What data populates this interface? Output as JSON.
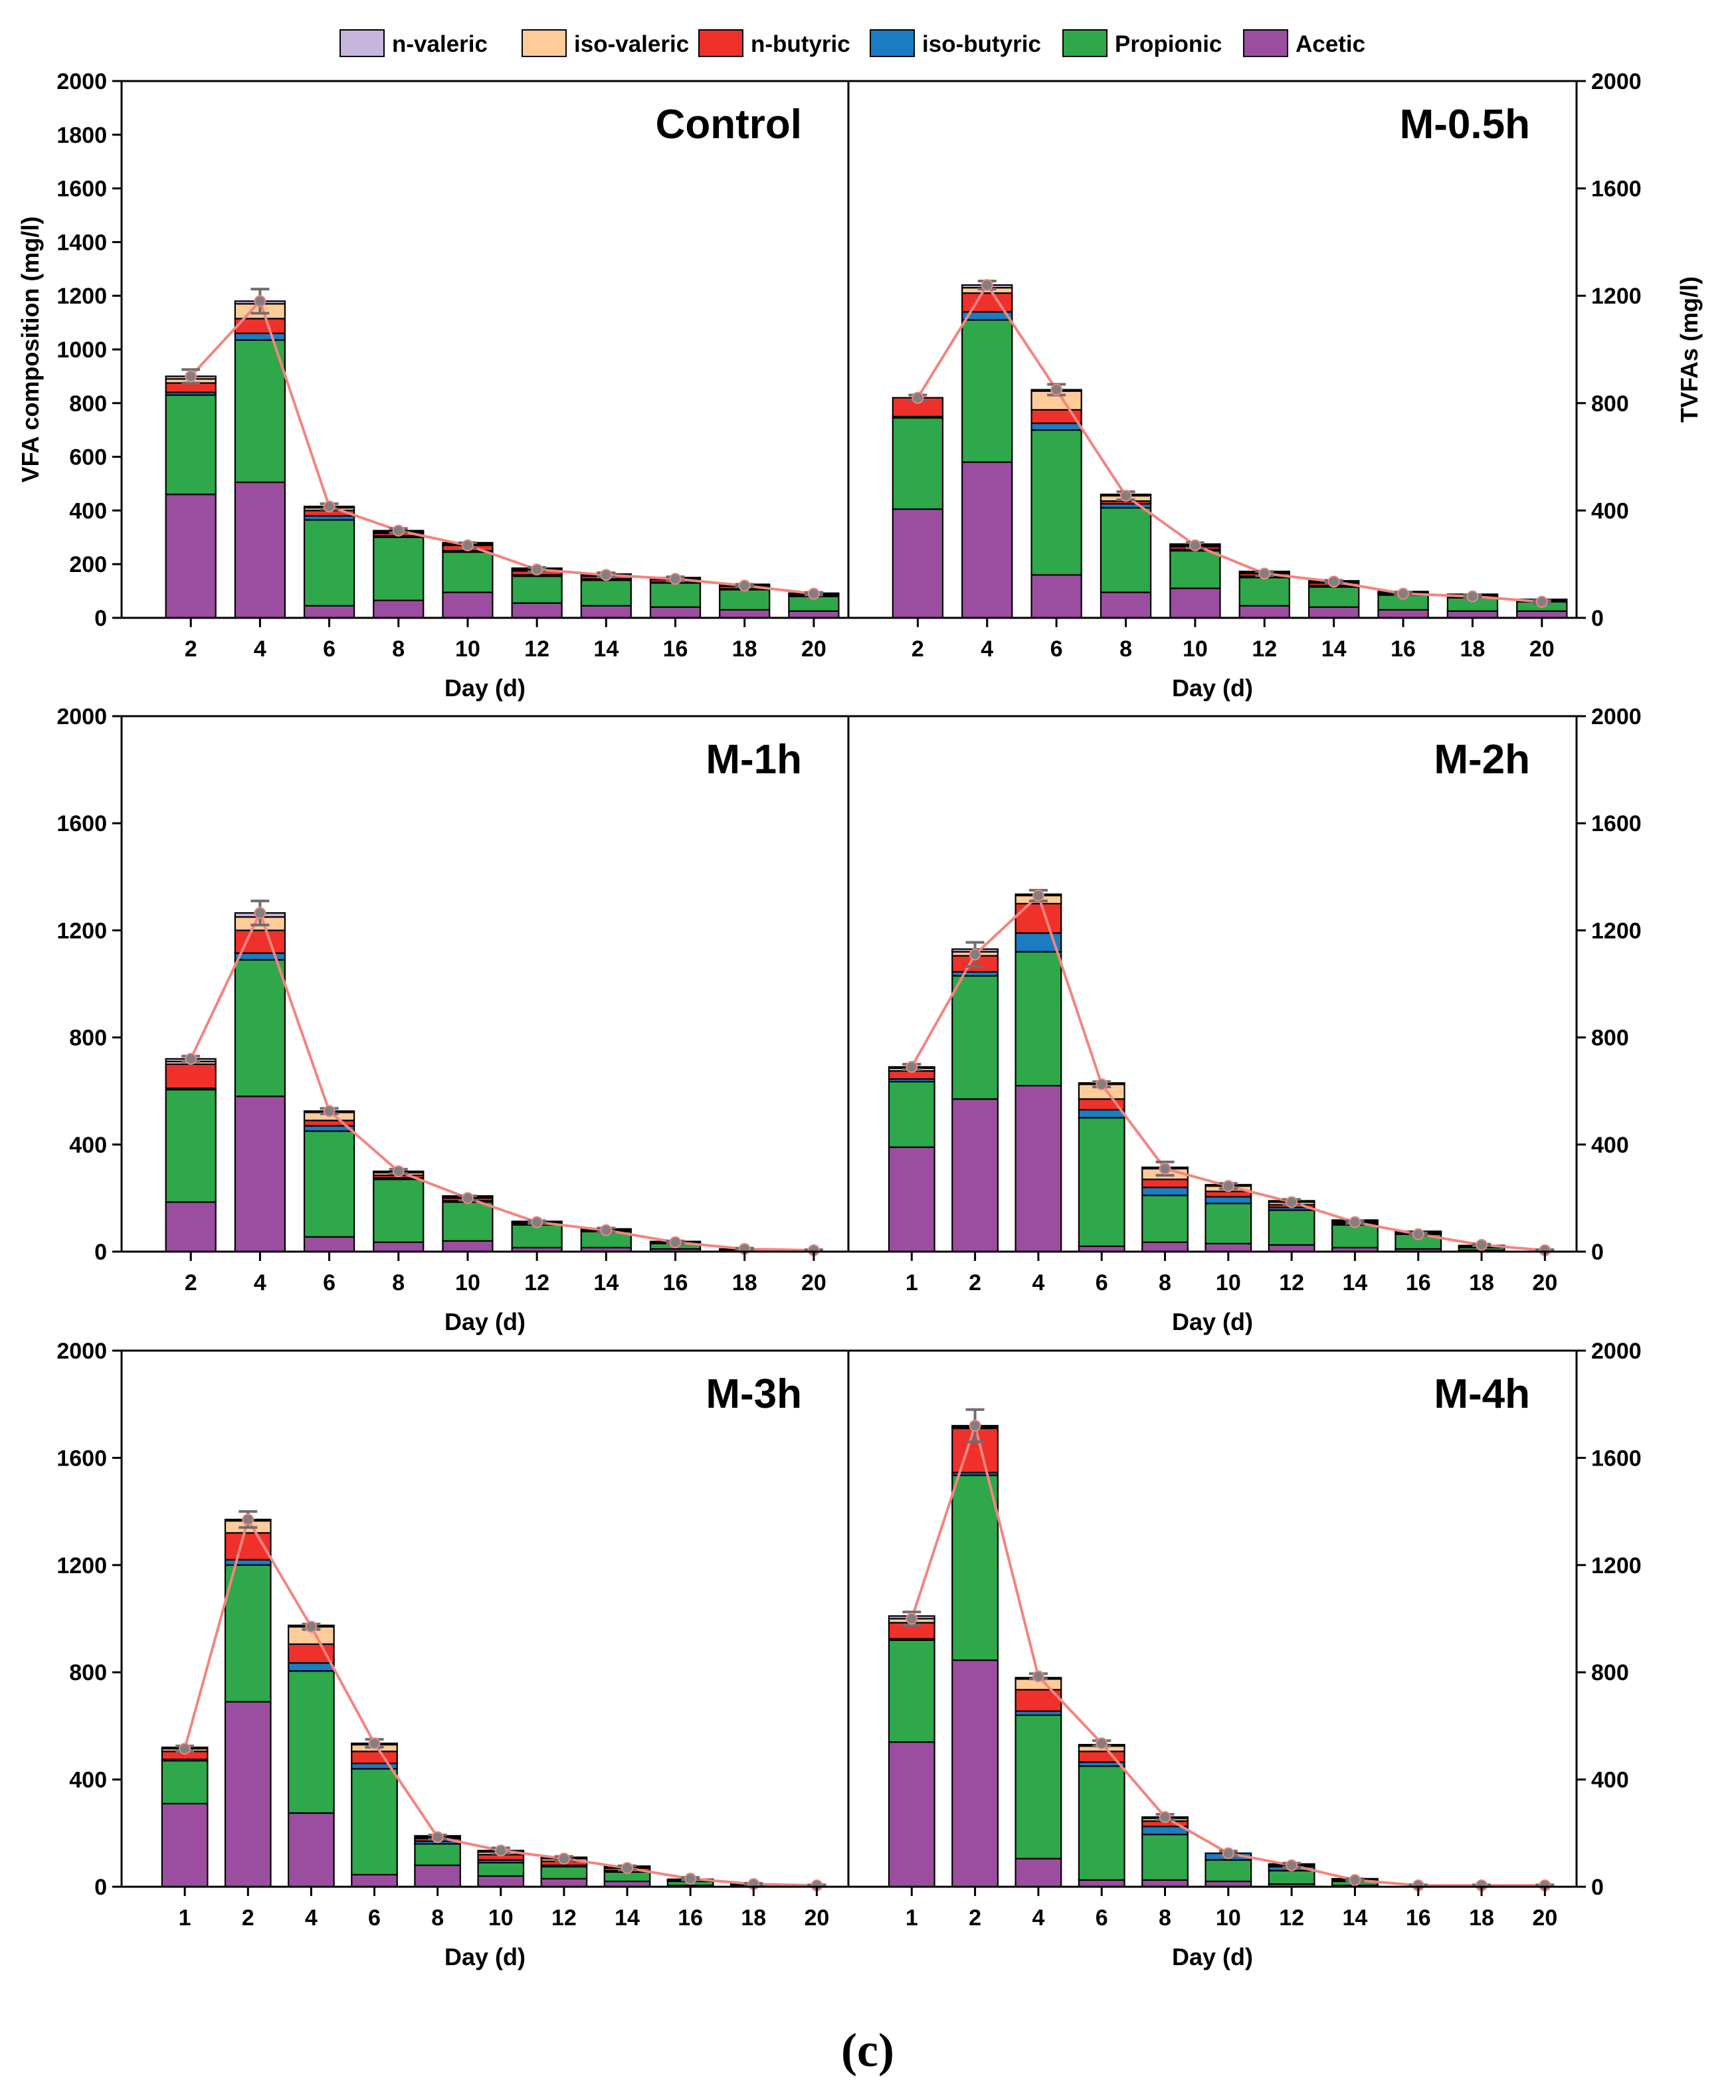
{
  "figure": {
    "caption": "(c)"
  },
  "colors": {
    "Acetic": "#9b4ea0",
    "Propionic": "#2ea84a",
    "iso-butyric": "#1a7cc1",
    "n-butyric": "#f0302a",
    "iso-valeric": "#ffcc99",
    "n-valeric": "#c6b5dc",
    "tvfa_line": "#f4847f",
    "tvfa_marker": "#808080"
  },
  "chart_data": {
    "legend": [
      "n-valeric",
      "iso-valeric",
      "n-butyric",
      "iso-butyric",
      "Propionic",
      "Acetic"
    ],
    "stack_order": [
      "Acetic",
      "Propionic",
      "iso-butyric",
      "n-butyric",
      "iso-valeric",
      "n-valeric"
    ],
    "y_left_label": "VFA composition (mg/l)",
    "y_right_label": "TVFAs (mg/l)",
    "x_label": "Day (d)",
    "panels": [
      {
        "title": "Control",
        "type": "bar",
        "stacked": true,
        "ylim": [
          0,
          2000
        ],
        "y_ticks_left": [
          0,
          200,
          400,
          600,
          800,
          1000,
          1200,
          1400,
          1600,
          1800,
          2000
        ],
        "y_ticks_right": [
          0,
          400,
          800,
          1200,
          1600,
          2000
        ],
        "categories": [
          "2",
          "4",
          "6",
          "8",
          "10",
          "12",
          "14",
          "16",
          "18",
          "20"
        ],
        "series": [
          {
            "name": "Acetic",
            "values": [
              460,
              505,
              45,
              65,
              95,
              55,
              45,
              40,
              30,
              25
            ]
          },
          {
            "name": "Propionic",
            "values": [
              370,
              530,
              320,
              235,
              150,
              100,
              95,
              90,
              75,
              55
            ]
          },
          {
            "name": "iso-butyric",
            "values": [
              10,
              25,
              15,
              5,
              5,
              5,
              5,
              3,
              3,
              2
            ]
          },
          {
            "name": "n-butyric",
            "values": [
              35,
              55,
              20,
              10,
              20,
              15,
              10,
              10,
              10,
              5
            ]
          },
          {
            "name": "iso-valeric",
            "values": [
              15,
              55,
              10,
              5,
              5,
              5,
              5,
              5,
              5,
              3
            ]
          },
          {
            "name": "n-valeric",
            "values": [
              10,
              10,
              5,
              5,
              5,
              5,
              3,
              2,
              2,
              2
            ]
          }
        ],
        "tvfa": [
          900,
          1180,
          415,
          325,
          270,
          180,
          160,
          145,
          120,
          90
        ],
        "tvfa_err": [
          25,
          45,
          10,
          8,
          10,
          8,
          8,
          8,
          5,
          5
        ]
      },
      {
        "title": "M-0.5h",
        "type": "bar",
        "stacked": true,
        "ylim": [
          0,
          2000
        ],
        "y_ticks_left": [
          0,
          200,
          400,
          600,
          800,
          1000,
          1200,
          1400,
          1600,
          1800,
          2000
        ],
        "y_ticks_right": [
          0,
          400,
          800,
          1200,
          1600,
          2000
        ],
        "categories": [
          "2",
          "4",
          "6",
          "8",
          "10",
          "12",
          "14",
          "16",
          "18",
          "20"
        ],
        "series": [
          {
            "name": "Acetic",
            "values": [
              405,
              580,
              160,
              95,
              110,
              45,
              40,
              30,
              25,
              25
            ]
          },
          {
            "name": "Propionic",
            "values": [
              340,
              530,
              540,
              315,
              140,
              105,
              75,
              55,
              50,
              35
            ]
          },
          {
            "name": "iso-butyric",
            "values": [
              5,
              30,
              25,
              15,
              5,
              5,
              5,
              3,
              3,
              2
            ]
          },
          {
            "name": "n-butyric",
            "values": [
              70,
              70,
              50,
              10,
              10,
              10,
              10,
              5,
              5,
              3
            ]
          },
          {
            "name": "iso-valeric",
            "values": [
              0,
              20,
              70,
              20,
              5,
              5,
              5,
              3,
              3,
              2
            ]
          },
          {
            "name": "n-valeric",
            "values": [
              0,
              10,
              5,
              5,
              5,
              3,
              3,
              2,
              2,
              2
            ]
          }
        ],
        "tvfa": [
          820,
          1240,
          850,
          455,
          270,
          165,
          135,
          90,
          80,
          60
        ],
        "tvfa_err": [
          10,
          15,
          20,
          15,
          10,
          8,
          5,
          5,
          5,
          5
        ]
      },
      {
        "title": "M-1h",
        "type": "bar",
        "stacked": true,
        "ylim": [
          0,
          2000
        ],
        "y_ticks_left": [
          0,
          400,
          800,
          1200,
          1600,
          2000
        ],
        "y_ticks_right": [
          0,
          400,
          800,
          1200,
          1600,
          2000
        ],
        "categories": [
          "2",
          "4",
          "6",
          "8",
          "10",
          "12",
          "14",
          "16",
          "18",
          "20"
        ],
        "series": [
          {
            "name": "Acetic",
            "values": [
              185,
              580,
              55,
              35,
              40,
              15,
              15,
              10,
              5,
              0
            ]
          },
          {
            "name": "Propionic",
            "values": [
              420,
              510,
              395,
              235,
              145,
              85,
              60,
              20,
              5,
              0
            ]
          },
          {
            "name": "iso-butyric",
            "values": [
              5,
              25,
              20,
              5,
              5,
              3,
              3,
              2,
              0,
              0
            ]
          },
          {
            "name": "n-butyric",
            "values": [
              90,
              85,
              20,
              10,
              10,
              5,
              3,
              2,
              0,
              0
            ]
          },
          {
            "name": "iso-valeric",
            "values": [
              10,
              50,
              30,
              10,
              5,
              3,
              2,
              2,
              0,
              0
            ]
          },
          {
            "name": "n-valeric",
            "values": [
              10,
              15,
              5,
              5,
              3,
              2,
              2,
              2,
              0,
              0
            ]
          }
        ],
        "tvfa": [
          720,
          1265,
          525,
          300,
          200,
          110,
          80,
          35,
          10,
          5
        ],
        "tvfa_err": [
          10,
          45,
          10,
          8,
          8,
          5,
          8,
          5,
          3,
          2
        ]
      },
      {
        "title": "M-2h",
        "type": "bar",
        "stacked": true,
        "ylim": [
          0,
          2000
        ],
        "y_ticks_left": [
          0,
          400,
          800,
          1200,
          1600,
          2000
        ],
        "y_ticks_right": [
          0,
          400,
          800,
          1200,
          1600,
          2000
        ],
        "categories": [
          "1",
          "2",
          "4",
          "6",
          "8",
          "10",
          "12",
          "14",
          "16",
          "18",
          "20"
        ],
        "series": [
          {
            "name": "Acetic",
            "values": [
              390,
              570,
              620,
              20,
              35,
              30,
              25,
              15,
              10,
              5,
              0
            ]
          },
          {
            "name": "Propionic",
            "values": [
              245,
              460,
              500,
              480,
              175,
              150,
              130,
              85,
              55,
              10,
              0
            ]
          },
          {
            "name": "iso-butyric",
            "values": [
              10,
              15,
              70,
              30,
              30,
              25,
              10,
              5,
              3,
              2,
              0
            ]
          },
          {
            "name": "n-butyric",
            "values": [
              30,
              60,
              110,
              40,
              30,
              20,
              10,
              5,
              3,
              2,
              0
            ]
          },
          {
            "name": "iso-valeric",
            "values": [
              10,
              15,
              30,
              55,
              40,
              20,
              10,
              5,
              3,
              2,
              0
            ]
          },
          {
            "name": "n-valeric",
            "values": [
              5,
              10,
              5,
              5,
              5,
              5,
              5,
              3,
              2,
              2,
              0
            ]
          }
        ],
        "tvfa": [
          690,
          1110,
          1330,
          625,
          310,
          245,
          185,
          110,
          65,
          25,
          5
        ],
        "tvfa_err": [
          10,
          45,
          20,
          10,
          25,
          10,
          10,
          5,
          5,
          3,
          2
        ]
      },
      {
        "title": "M-3h",
        "type": "bar",
        "stacked": true,
        "ylim": [
          0,
          2000
        ],
        "y_ticks_left": [
          0,
          400,
          800,
          1200,
          1600,
          2000
        ],
        "y_ticks_right": [
          0,
          400,
          800,
          1200,
          1600,
          2000
        ],
        "categories": [
          "1",
          "2",
          "4",
          "6",
          "8",
          "10",
          "12",
          "14",
          "16",
          "18",
          "20"
        ],
        "series": [
          {
            "name": "Acetic",
            "values": [
              310,
              690,
              275,
              45,
              80,
              40,
              30,
              20,
              5,
              2,
              0
            ]
          },
          {
            "name": "Propionic",
            "values": [
              160,
              510,
              530,
              395,
              80,
              50,
              45,
              35,
              15,
              5,
              0
            ]
          },
          {
            "name": "iso-butyric",
            "values": [
              5,
              20,
              30,
              20,
              10,
              10,
              5,
              5,
              2,
              1,
              0
            ]
          },
          {
            "name": "n-butyric",
            "values": [
              30,
              100,
              70,
              45,
              10,
              20,
              15,
              10,
              3,
              1,
              0
            ]
          },
          {
            "name": "iso-valeric",
            "values": [
              10,
              45,
              65,
              25,
              5,
              10,
              10,
              5,
              2,
              1,
              0
            ]
          },
          {
            "name": "n-valeric",
            "values": [
              5,
              5,
              5,
              5,
              5,
              5,
              5,
              2,
              1,
              0,
              0
            ]
          }
        ],
        "tvfa": [
          515,
          1370,
          970,
          535,
          185,
          135,
          105,
          70,
          30,
          10,
          5
        ],
        "tvfa_err": [
          10,
          30,
          10,
          15,
          8,
          10,
          8,
          8,
          5,
          3,
          2
        ]
      },
      {
        "title": "M-4h",
        "type": "bar",
        "stacked": true,
        "ylim": [
          0,
          2000
        ],
        "y_ticks_left": [
          0,
          400,
          800,
          1200,
          1600,
          2000
        ],
        "y_ticks_right": [
          0,
          400,
          800,
          1200,
          1600,
          2000
        ],
        "categories": [
          "1",
          "2",
          "4",
          "6",
          "8",
          "10",
          "12",
          "14",
          "16",
          "18",
          "20"
        ],
        "series": [
          {
            "name": "Acetic",
            "values": [
              540,
              845,
              105,
              25,
              25,
              20,
              10,
              5,
              0,
              0,
              0
            ]
          },
          {
            "name": "Propionic",
            "values": [
              380,
              690,
              535,
              425,
              170,
              80,
              50,
              15,
              0,
              0,
              0
            ]
          },
          {
            "name": "iso-butyric",
            "values": [
              5,
              10,
              15,
              15,
              30,
              25,
              15,
              3,
              0,
              0,
              0
            ]
          },
          {
            "name": "n-butyric",
            "values": [
              60,
              165,
              80,
              40,
              20,
              0,
              5,
              3,
              0,
              0,
              0
            ]
          },
          {
            "name": "iso-valeric",
            "values": [
              15,
              5,
              40,
              20,
              10,
              0,
              3,
              2,
              0,
              0,
              0
            ]
          },
          {
            "name": "n-valeric",
            "values": [
              10,
              5,
              5,
              5,
              5,
              0,
              2,
              2,
              0,
              0,
              0
            ]
          }
        ],
        "tvfa": [
          1000,
          1720,
          785,
          535,
          260,
          125,
          80,
          25,
          5,
          5,
          5
        ],
        "tvfa_err": [
          25,
          60,
          10,
          10,
          10,
          8,
          8,
          5,
          2,
          2,
          2
        ]
      }
    ]
  }
}
